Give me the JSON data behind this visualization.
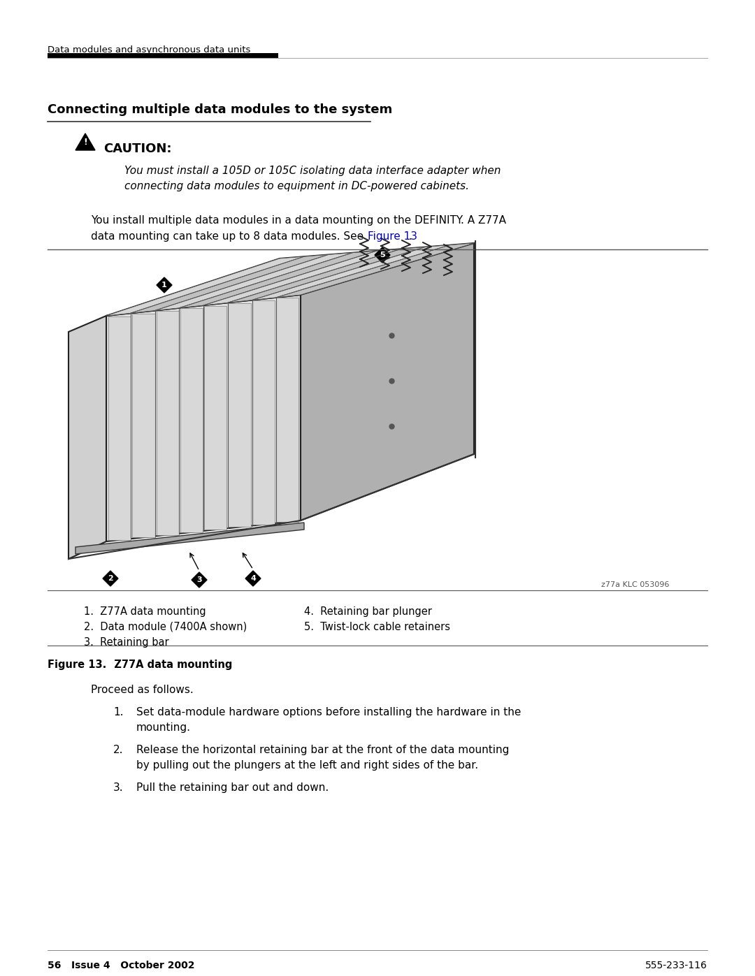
{
  "bg_color": "#ffffff",
  "header_text": "Data modules and asynchronous data units",
  "header_bar_color": "#000000",
  "section_title": "Connecting multiple data modules to the system",
  "caution_title": "CAUTION:",
  "caution_body_line1": "You must install a 105D or 105C isolating data interface adapter when",
  "caution_body_line2": "connecting data modules to equipment in DC-powered cabinets.",
  "body_text_line1": "You install multiple data modules in a data mounting on the DEFINITY. A Z77A",
  "body_text_line2": "data mounting can take up to 8 data modules. See ",
  "body_text_link": "Figure 13",
  "body_text_end": ".",
  "figure_caption_label": "Figure 13.",
  "figure_caption_text": "   Z77A data mounting",
  "legend_col1": [
    "1.  Z77A data mounting",
    "2.  Data module (7400A shown)",
    "3.  Retaining bar"
  ],
  "legend_col2": [
    "4.  Retaining bar plunger",
    "5.  Twist-lock cable retainers"
  ],
  "proceed_text": "Proceed as follows.",
  "steps": [
    "Set data-module hardware options before installing the hardware in the mounting.",
    "Release the horizontal retaining bar at the front of the data mounting by pulling out the plungers at the left and right sides of the bar.",
    "Pull the retaining bar out and down."
  ],
  "footer_left": "56   Issue 4   October 2002",
  "footer_right": "555-233-116",
  "diagram_credit": "z77a KLC 053096",
  "link_color": "#0000cc",
  "text_color": "#000000"
}
